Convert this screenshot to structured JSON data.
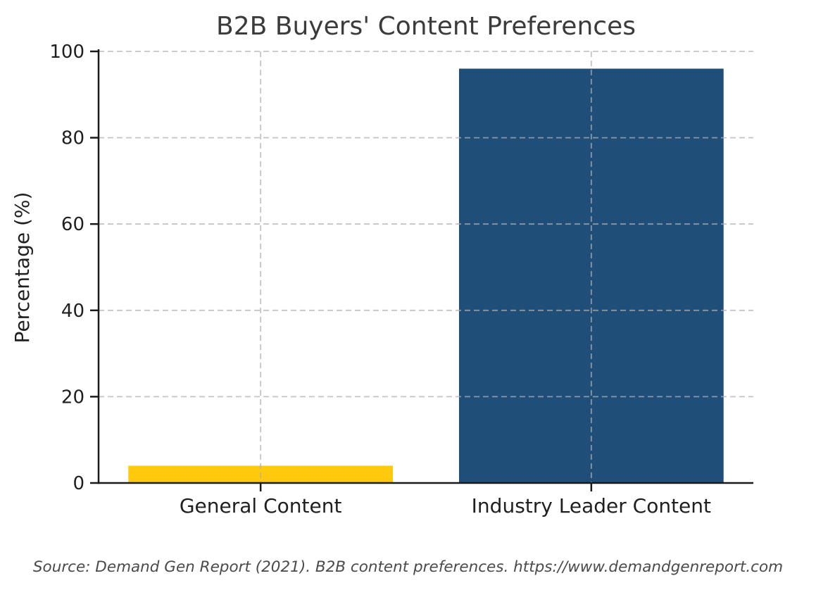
{
  "chart_data": {
    "type": "bar",
    "title": "B2B Buyers' Content Preferences",
    "categories": [
      "General Content",
      "Industry Leader Content"
    ],
    "values": [
      4,
      96
    ],
    "bar_colors": [
      "#FFC90D",
      "#1F4E79"
    ],
    "xlabel": "",
    "ylabel": "Percentage (%)",
    "ylim": [
      0,
      100
    ],
    "yticks": [
      0,
      20,
      40,
      60,
      80,
      100
    ],
    "legend": "none",
    "grid": "dashed horizontal lines at y ticks and dashed vertical lines at category centers, drawn above bars",
    "source_note": "Source: Demand Gen Report (2021). B2B content preferences. https://www.demandgenreport.com"
  },
  "colors": {
    "background": "#ffffff",
    "title_text": "#3b3b3b",
    "axis_text": "#1f1f1f",
    "axis_line": "#1a1a1a",
    "gridline": "#b0b0b0",
    "source_text": "#4a4a4a"
  }
}
